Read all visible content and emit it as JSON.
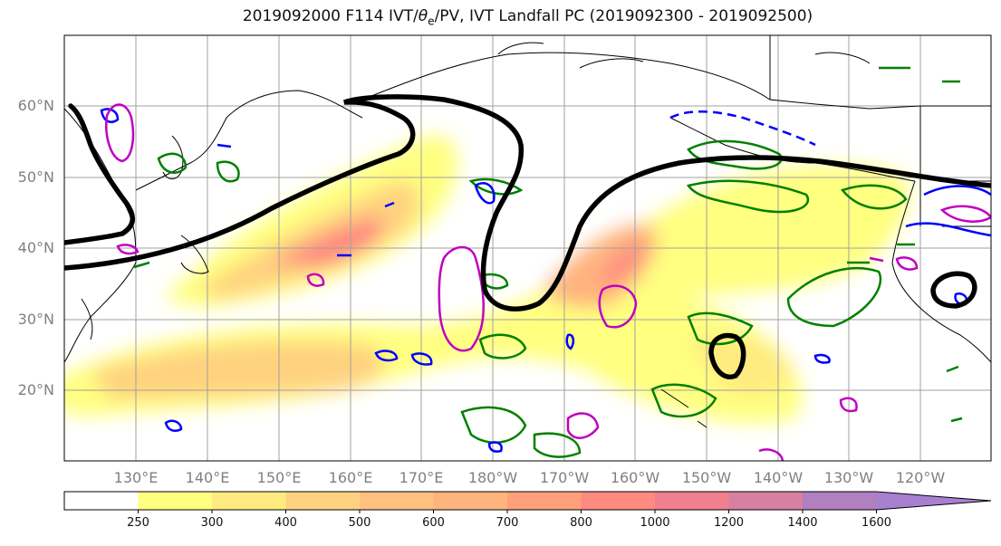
{
  "title": {
    "prefix": "2019092000 F114 IVT/",
    "theta": "θ",
    "theta_sub": "e",
    "suffix": "/PV, IVT Landfall PC (2019092300 - 2019092500)"
  },
  "map": {
    "lat_labels": [
      "60°N",
      "50°N",
      "40°N",
      "30°N",
      "20°N"
    ],
    "lon_labels": [
      "130°E",
      "140°E",
      "150°E",
      "160°E",
      "170°E",
      "180°W",
      "170°W",
      "160°W",
      "150°W",
      "140°W",
      "130°W",
      "120°W"
    ],
    "lat_range": [
      10,
      70
    ],
    "lon_range": [
      120,
      250
    ],
    "colors": {
      "land_outline": "#000000",
      "gridline": "#a0a0a0",
      "pv_contour": "#000000",
      "theta_green": "#008000",
      "theta_blue": "#0000ff",
      "theta_magenta": "#c000c0"
    }
  },
  "colorbar": {
    "levels": [
      "250",
      "300",
      "400",
      "500",
      "600",
      "700",
      "800",
      "1000",
      "1200",
      "1400",
      "1600"
    ],
    "colors": [
      "#ffffff",
      "#ffff80",
      "#ffeb80",
      "#ffd280",
      "#ffc080",
      "#ffb47e",
      "#ffa07a",
      "#ff8a80",
      "#f08090",
      "#d880a0",
      "#b080c0",
      "#a880d0"
    ],
    "extend": "max"
  }
}
